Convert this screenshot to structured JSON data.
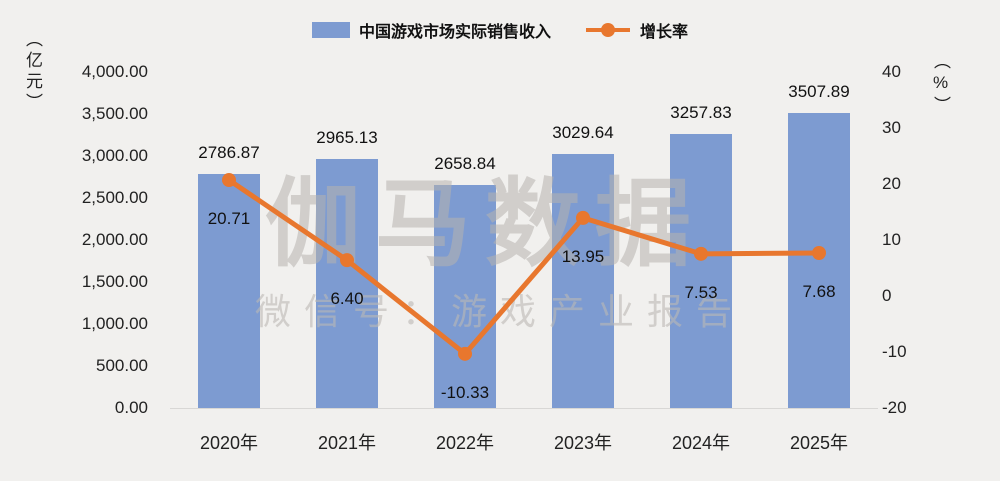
{
  "chart_data": {
    "type": "bar",
    "subtype": "combo-bar-line",
    "categories": [
      "2020年",
      "2021年",
      "2022年",
      "2023年",
      "2024年",
      "2025年"
    ],
    "series": [
      {
        "name": "中国游戏市场实际销售收入",
        "type": "bar",
        "axis": "left",
        "color": "#7D9BD1",
        "values": [
          2786.87,
          2965.13,
          2658.84,
          3029.64,
          3257.83,
          3507.89
        ],
        "labels": [
          "2786.87",
          "2965.13",
          "2658.84",
          "3029.64",
          "3257.83",
          "3507.89"
        ]
      },
      {
        "name": "增长率",
        "type": "line",
        "axis": "right",
        "color": "#E8772E",
        "values": [
          20.71,
          6.4,
          -10.33,
          13.95,
          7.53,
          7.68
        ],
        "labels": [
          "20.71",
          "6.40",
          "-10.33",
          "13.95",
          "7.53",
          "7.68"
        ]
      }
    ],
    "left_axis": {
      "title": "（亿元）",
      "min": 0,
      "max": 4000,
      "step": 500,
      "tick_labels": [
        "0.00",
        "500.00",
        "1,000.00",
        "1,500.00",
        "2,000.00",
        "2,500.00",
        "3,000.00",
        "3,500.00",
        "4,000.00"
      ]
    },
    "right_axis": {
      "title": "（%）",
      "min": -20,
      "max": 40,
      "step": 10,
      "tick_labels": [
        "-20",
        "-10",
        "0",
        "10",
        "20",
        "30",
        "40"
      ]
    },
    "legend_position": "top",
    "grid": false,
    "background": "#f1f0ee",
    "watermark": {
      "main": "伽马数据",
      "sub": "微信号：游戏产业报告"
    }
  }
}
